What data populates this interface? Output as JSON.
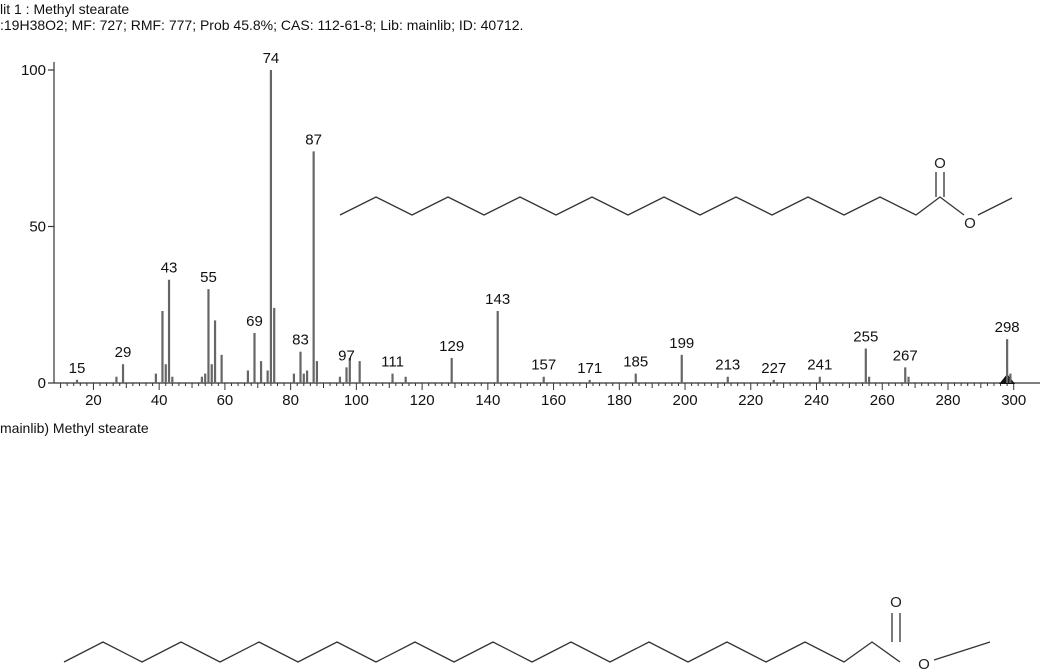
{
  "header": {
    "line1": "lit 1 : Methyl stearate",
    "line2": ":19H38O2; MF: 727; RMF: 777; Prob 45.8%; CAS: 112-61-8; Lib: mainlib; ID: 40712."
  },
  "caption": "mainlib) Methyl stearate",
  "structure": {
    "oxygen_label": "O"
  },
  "colors": {
    "peak": "#666666",
    "axis": "#333333",
    "text": "#111111"
  },
  "chart_data": {
    "type": "bar",
    "xlim": [
      8,
      308
    ],
    "ylim": [
      0,
      100
    ],
    "x_ticks": [
      20,
      40,
      60,
      80,
      100,
      120,
      140,
      160,
      180,
      200,
      220,
      240,
      260,
      280,
      300
    ],
    "y_ticks": [
      0,
      50,
      100
    ],
    "marker_x": 298,
    "peaks": [
      {
        "mz": 15,
        "intensity": 1
      },
      {
        "mz": 27,
        "intensity": 2
      },
      {
        "mz": 29,
        "intensity": 6
      },
      {
        "mz": 39,
        "intensity": 3
      },
      {
        "mz": 41,
        "intensity": 23
      },
      {
        "mz": 42,
        "intensity": 6
      },
      {
        "mz": 43,
        "intensity": 33
      },
      {
        "mz": 44,
        "intensity": 2
      },
      {
        "mz": 53,
        "intensity": 2
      },
      {
        "mz": 54,
        "intensity": 3
      },
      {
        "mz": 55,
        "intensity": 30
      },
      {
        "mz": 56,
        "intensity": 6
      },
      {
        "mz": 57,
        "intensity": 20
      },
      {
        "mz": 59,
        "intensity": 9
      },
      {
        "mz": 67,
        "intensity": 4
      },
      {
        "mz": 69,
        "intensity": 16
      },
      {
        "mz": 71,
        "intensity": 7
      },
      {
        "mz": 73,
        "intensity": 4
      },
      {
        "mz": 74,
        "intensity": 100
      },
      {
        "mz": 75,
        "intensity": 24
      },
      {
        "mz": 81,
        "intensity": 3
      },
      {
        "mz": 83,
        "intensity": 10
      },
      {
        "mz": 84,
        "intensity": 3
      },
      {
        "mz": 85,
        "intensity": 4
      },
      {
        "mz": 87,
        "intensity": 74
      },
      {
        "mz": 88,
        "intensity": 7
      },
      {
        "mz": 95,
        "intensity": 2
      },
      {
        "mz": 97,
        "intensity": 5
      },
      {
        "mz": 98,
        "intensity": 8
      },
      {
        "mz": 101,
        "intensity": 7
      },
      {
        "mz": 111,
        "intensity": 3
      },
      {
        "mz": 115,
        "intensity": 2
      },
      {
        "mz": 129,
        "intensity": 8
      },
      {
        "mz": 143,
        "intensity": 23
      },
      {
        "mz": 157,
        "intensity": 2
      },
      {
        "mz": 171,
        "intensity": 1
      },
      {
        "mz": 185,
        "intensity": 3
      },
      {
        "mz": 199,
        "intensity": 9
      },
      {
        "mz": 213,
        "intensity": 2
      },
      {
        "mz": 227,
        "intensity": 1
      },
      {
        "mz": 241,
        "intensity": 2
      },
      {
        "mz": 255,
        "intensity": 11
      },
      {
        "mz": 256,
        "intensity": 2
      },
      {
        "mz": 267,
        "intensity": 5
      },
      {
        "mz": 268,
        "intensity": 2
      },
      {
        "mz": 298,
        "intensity": 14
      },
      {
        "mz": 299,
        "intensity": 3
      }
    ],
    "peak_labels": [
      15,
      29,
      43,
      55,
      69,
      74,
      83,
      87,
      97,
      111,
      129,
      143,
      157,
      171,
      185,
      199,
      213,
      227,
      241,
      255,
      267,
      298
    ]
  }
}
